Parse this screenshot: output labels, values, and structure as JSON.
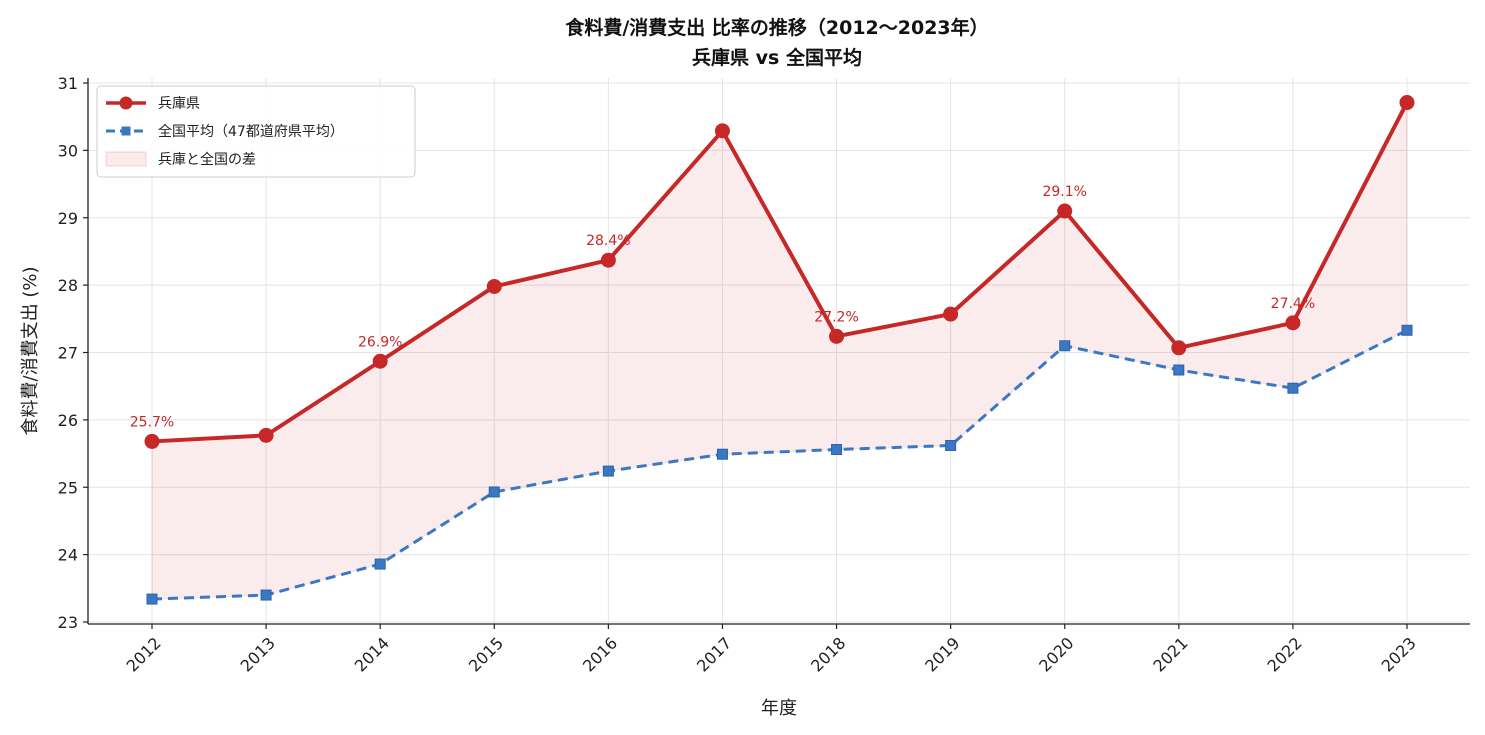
{
  "chart_data": {
    "type": "line",
    "title": "食料費/消費支出 比率の推移（2012〜2023年）",
    "subtitle": "兵庫県 vs 全国平均",
    "xlabel": "年度",
    "ylabel": "食料費/消費支出 (%)",
    "ylim": [
      23,
      31
    ],
    "yticks": [
      "23",
      "24",
      "25",
      "26",
      "27",
      "28",
      "29",
      "30",
      "31"
    ],
    "x": [
      "2012",
      "2013",
      "2014",
      "2015",
      "2016",
      "2017",
      "2018",
      "2019",
      "2020",
      "2021",
      "2022",
      "2023"
    ],
    "grid": true,
    "legend_position": "top-left",
    "series": [
      {
        "name": "兵庫県",
        "color": "#c62828",
        "style": "solid",
        "marker": "circle",
        "values": [
          25.68,
          25.77,
          26.87,
          27.98,
          28.37,
          30.29,
          27.24,
          27.57,
          29.1,
          27.07,
          27.44,
          30.71
        ]
      },
      {
        "name": "全国平均（47都道府県平均）",
        "color": "#3a78c3",
        "style": "dashed",
        "marker": "square",
        "values": [
          23.34,
          23.4,
          23.86,
          24.93,
          25.24,
          25.49,
          25.56,
          25.62,
          27.1,
          26.74,
          26.47,
          27.33
        ]
      }
    ],
    "fill_between": {
      "name": "兵庫と全国の差",
      "color": "#c62828"
    },
    "annotations": [
      {
        "x": "2012",
        "text": "25.7%"
      },
      {
        "x": "2014",
        "text": "26.9%"
      },
      {
        "x": "2016",
        "text": "28.4%"
      },
      {
        "x": "2018",
        "text": "27.2%"
      },
      {
        "x": "2020",
        "text": "29.1%"
      },
      {
        "x": "2022",
        "text": "27.4%"
      }
    ]
  }
}
